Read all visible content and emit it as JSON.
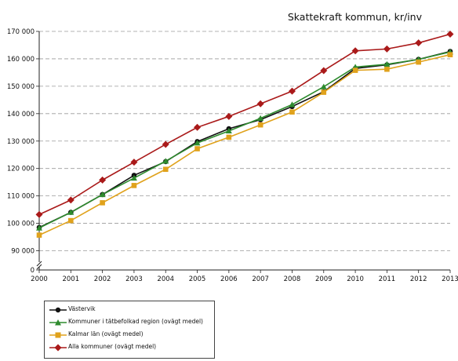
{
  "chart_data": {
    "type": "line",
    "title": "Skattekraft kommun, kr/inv",
    "x": [
      "2000",
      "2001",
      "2002",
      "2003",
      "2004",
      "2005",
      "2006",
      "2007",
      "2008",
      "2009",
      "2010",
      "2011",
      "2012",
      "2013"
    ],
    "ylim": [
      87000,
      170000
    ],
    "yticks": [
      0,
      90000,
      100000,
      110000,
      120000,
      130000,
      140000,
      150000,
      160000,
      170000
    ],
    "ytick_labels": [
      "0",
      "90 000",
      "100 000",
      "110 000",
      "120 000",
      "130 000",
      "140 000",
      "150 000",
      "160 000",
      "170 000"
    ],
    "axis_break": true,
    "grid": "horizontal dashed",
    "legend_position": "bottom-left",
    "series": [
      {
        "name": "Västervik",
        "color": "#111111",
        "marker": "circle",
        "values": [
          98500,
          104000,
          110500,
          117500,
          122500,
          129800,
          134500,
          137800,
          142600,
          148000,
          156500,
          157800,
          159800,
          162700
        ]
      },
      {
        "name": "Kommuner i tätbefolkad region (ovägt medel)",
        "color": "#2e8b2e",
        "marker": "triangle",
        "values": [
          98300,
          104000,
          110500,
          116500,
          122700,
          129300,
          133700,
          138300,
          143300,
          149800,
          157000,
          158000,
          159800,
          162500
        ]
      },
      {
        "name": "Kalmar län (ovägt medel)",
        "color": "#e0a21c",
        "marker": "square",
        "values": [
          95700,
          101000,
          107500,
          113800,
          119700,
          127200,
          131400,
          135900,
          140600,
          147800,
          155800,
          156200,
          158800,
          161500
        ]
      },
      {
        "name": "Alla kommuner (ovägt medel)",
        "color": "#aa1a1a",
        "marker": "diamond",
        "values": [
          103200,
          108500,
          115800,
          122300,
          128800,
          135000,
          139000,
          143600,
          148200,
          155700,
          162900,
          163600,
          165800,
          169000
        ]
      }
    ]
  }
}
